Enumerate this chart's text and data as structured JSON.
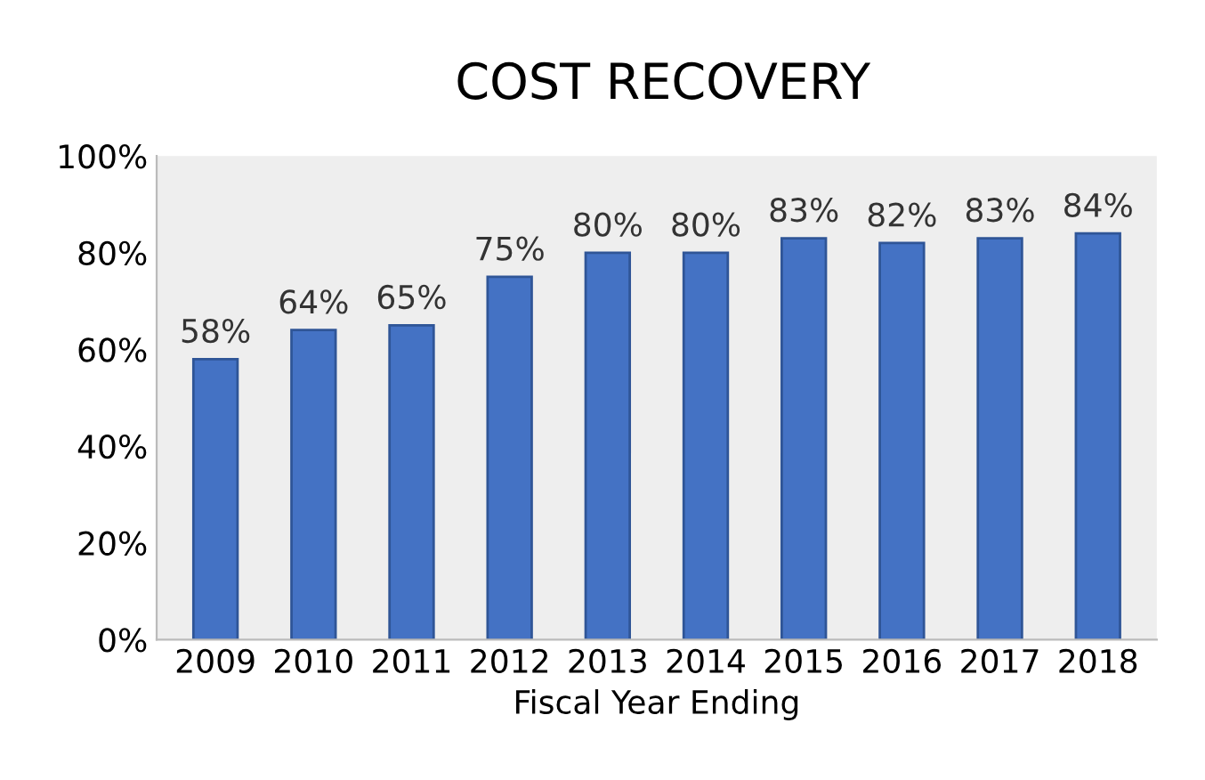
{
  "chart_data": {
    "type": "bar",
    "title": "COST RECOVERY",
    "xlabel": "Fiscal Year Ending",
    "categories": [
      "2009",
      "2010",
      "2011",
      "2012",
      "2013",
      "2014",
      "2015",
      "2016",
      "2017",
      "2018"
    ],
    "values": [
      58,
      64,
      65,
      75,
      80,
      80,
      83,
      82,
      83,
      84
    ],
    "value_labels": [
      "58%",
      "64%",
      "65%",
      "75%",
      "80%",
      "80%",
      "83%",
      "82%",
      "83%",
      "84%"
    ],
    "color": "#4472c4",
    "ylim": [
      0,
      100
    ],
    "yticks": [
      {
        "value": 0,
        "label": "0%"
      },
      {
        "value": 20,
        "label": "20%"
      },
      {
        "value": 40,
        "label": "40%"
      },
      {
        "value": 60,
        "label": "60%"
      },
      {
        "value": 80,
        "label": "80%"
      },
      {
        "value": 100,
        "label": "100%"
      }
    ],
    "grid": false
  }
}
